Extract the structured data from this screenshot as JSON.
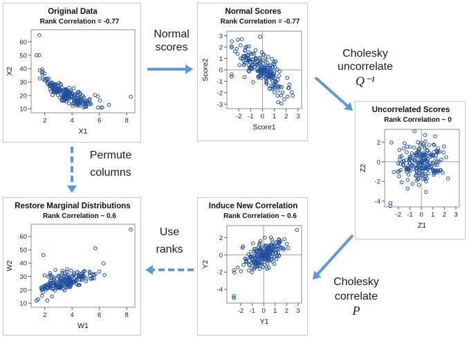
{
  "arrow_color": "#5b9bd5",
  "marker_color": "#1f4e9e",
  "panels": [
    {
      "id": "orig",
      "title": "Original Data",
      "subtitle": "Rank Correlation = -0.77",
      "xlabel": "X1",
      "ylabel": "X2",
      "xlim": [
        1,
        8.6
      ],
      "ylim": [
        7,
        69
      ],
      "xticks": [
        2,
        4,
        6,
        8
      ],
      "yticks": [
        10,
        20,
        30,
        40,
        50,
        60
      ],
      "ref_lines": false,
      "seed": 11,
      "mode": "orig"
    },
    {
      "id": "normal",
      "title": "Normal Scores",
      "subtitle": "Rank Correlation = -0.77",
      "xlabel": "Score1",
      "ylabel": "Score2",
      "xlim": [
        -3,
        3.3
      ],
      "ylim": [
        -3.4,
        3.4
      ],
      "xticks": [
        -2,
        -1,
        0,
        1,
        2,
        3
      ],
      "yticks": [
        -3,
        -2,
        -1,
        0,
        1,
        2,
        3
      ],
      "ref_lines": true,
      "seed": 22,
      "mode": "corr",
      "rho": -0.77
    },
    {
      "id": "uncorr",
      "title": "Uncorrelated Scores",
      "subtitle": "Rank Correlation ~ 0",
      "xlabel": "Z1",
      "ylabel": "Z2",
      "xlim": [
        -3.2,
        3.3
      ],
      "ylim": [
        -4.6,
        3.3
      ],
      "xticks": [
        -2,
        -1,
        0,
        1,
        2,
        3
      ],
      "yticks": [
        -4,
        -2,
        0,
        2
      ],
      "ref_lines": true,
      "seed": 33,
      "mode": "corr",
      "rho": 0.0
    },
    {
      "id": "induce",
      "title": "Induce New Correlation",
      "subtitle": "Rank Correlation ~ 0.6",
      "xlabel": "Y1",
      "ylabel": "Y2",
      "xlim": [
        -3.2,
        3.3
      ],
      "ylim": [
        -5.6,
        3.4
      ],
      "xticks": [
        -2,
        -1,
        0,
        1,
        2,
        3
      ],
      "yticks": [
        -4,
        -2,
        0,
        2
      ],
      "ref_lines": true,
      "seed": 44,
      "mode": "corr",
      "rho": 0.6
    },
    {
      "id": "restore",
      "title": "Restore Marginal Distributions",
      "subtitle": "Rank Correlation ~ 0.6",
      "xlabel": "W1",
      "ylabel": "W2",
      "xlim": [
        1,
        8.6
      ],
      "ylim": [
        7,
        69
      ],
      "xticks": [
        2,
        4,
        6,
        8
      ],
      "yticks": [
        10,
        20,
        30,
        40,
        50,
        60
      ],
      "ref_lines": false,
      "seed": 55,
      "mode": "restore"
    }
  ],
  "labels": {
    "normal_scores": {
      "line1": "Normal",
      "line2": "scores"
    },
    "chol_uncorr": {
      "line1": "Cholesky",
      "line2": "uncorrelate",
      "math": "Q⁻¹"
    },
    "permute": {
      "line1": "Permute",
      "line2": "columns"
    },
    "use_ranks": {
      "line1": "Use",
      "line2": "ranks"
    },
    "chol_corr": {
      "line1": "Cholesky",
      "line2": "correlate",
      "math": "P"
    }
  }
}
